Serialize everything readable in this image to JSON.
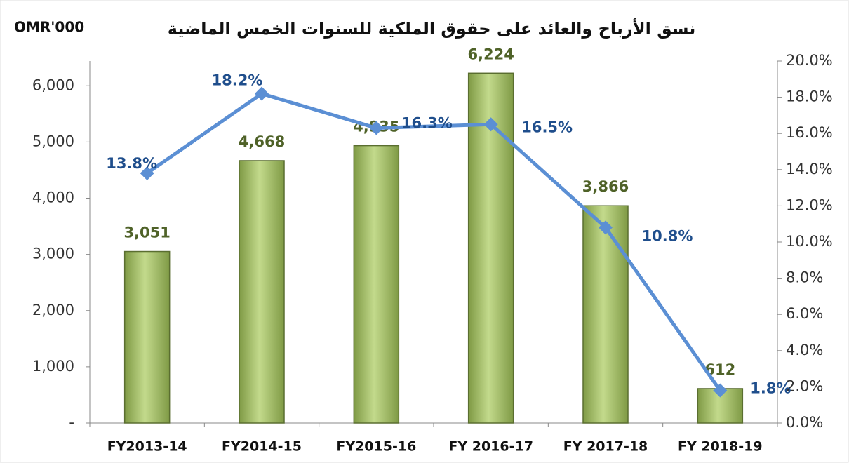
{
  "chart_data": {
    "type": "bar_line",
    "title": "نسق الأرباح والعائد على حقوق الملكية للسنوات الخمس الماضية",
    "y_axis_label": "OMR'000",
    "categories": [
      "FY2013-14",
      "FY2014-15",
      "FY2015-16",
      "FY 2016-17",
      "FY 2017-18",
      "FY 2018-19"
    ],
    "series": [
      {
        "type": "bar",
        "color": "#9bbb59",
        "values": [
          3051,
          4668,
          4935,
          6224,
          3866,
          612
        ],
        "value_labels": [
          "3,051",
          "4,668",
          "4,935",
          "6,224",
          "3,866",
          "612"
        ]
      },
      {
        "type": "line",
        "axis": "y2",
        "color": "#5b8fd4",
        "values": [
          13.8,
          18.2,
          16.3,
          16.5,
          10.8,
          1.8
        ],
        "value_labels": [
          "13.8%",
          "18.2%",
          "16.3%",
          "16.5%",
          "10.8%",
          "1.8%"
        ]
      }
    ],
    "ylim": [
      0,
      6440
    ],
    "yticks": [
      {
        "value": 0,
        "label": "-"
      },
      {
        "value": 1000,
        "label": "1,000"
      },
      {
        "value": 2000,
        "label": "2,000"
      },
      {
        "value": 3000,
        "label": "3,000"
      },
      {
        "value": 4000,
        "label": "4,000"
      },
      {
        "value": 5000,
        "label": "5,000"
      },
      {
        "value": 6000,
        "label": "6,000"
      }
    ],
    "y2lim": [
      0,
      20
    ],
    "y2ticks": [
      {
        "value": 0,
        "label": "0.0%"
      },
      {
        "value": 2,
        "label": "2.0%"
      },
      {
        "value": 4,
        "label": "4.0%"
      },
      {
        "value": 6,
        "label": "6.0%"
      },
      {
        "value": 8,
        "label": "8.0%"
      },
      {
        "value": 10,
        "label": "10.0%"
      },
      {
        "value": 12,
        "label": "12.0%"
      },
      {
        "value": 14,
        "label": "14.0%"
      },
      {
        "value": 16,
        "label": "16.0%"
      },
      {
        "value": 18,
        "label": "18.0%"
      },
      {
        "value": 20,
        "label": "20.0%"
      }
    ]
  }
}
